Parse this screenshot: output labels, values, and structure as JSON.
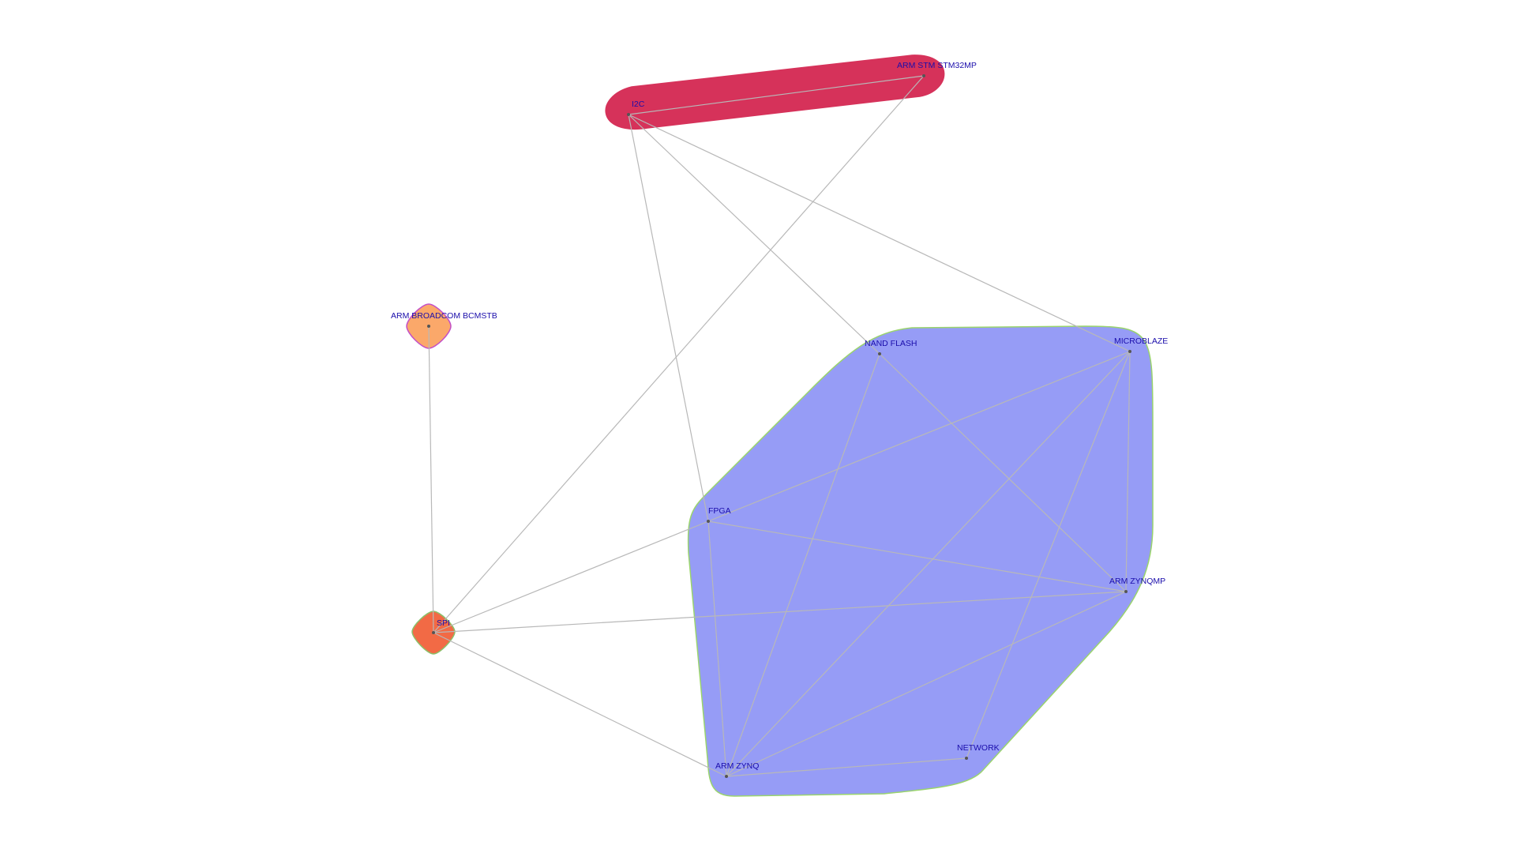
{
  "nodes": [
    {
      "id": "i2c",
      "label": "I2C"
    },
    {
      "id": "stm32mp",
      "label": "ARM STM STM32MP"
    },
    {
      "id": "bcmstb",
      "label": "ARM BROADCOM BCMSTB"
    },
    {
      "id": "spi",
      "label": "SPI"
    },
    {
      "id": "nand",
      "label": "NAND FLASH"
    },
    {
      "id": "microblaze",
      "label": "MICROBLAZE"
    },
    {
      "id": "fpga",
      "label": "FPGA"
    },
    {
      "id": "zynqmp",
      "label": "ARM ZYNQMP"
    },
    {
      "id": "network",
      "label": "NETWORK"
    },
    {
      "id": "zynq",
      "label": "ARM ZYNQ"
    }
  ],
  "edges": [
    [
      "i2c",
      "stm32mp"
    ],
    [
      "i2c",
      "nand"
    ],
    [
      "i2c",
      "microblaze"
    ],
    [
      "i2c",
      "fpga"
    ],
    [
      "stm32mp",
      "spi"
    ],
    [
      "bcmstb",
      "spi"
    ],
    [
      "spi",
      "fpga"
    ],
    [
      "spi",
      "zynqmp"
    ],
    [
      "spi",
      "zynq"
    ],
    [
      "nand",
      "zynqmp"
    ],
    [
      "nand",
      "zynq"
    ],
    [
      "microblaze",
      "fpga"
    ],
    [
      "microblaze",
      "zynqmp"
    ],
    [
      "microblaze",
      "zynq"
    ],
    [
      "microblaze",
      "network"
    ],
    [
      "fpga",
      "zynqmp"
    ],
    [
      "fpga",
      "zynq"
    ],
    [
      "zynqmp",
      "zynq"
    ],
    [
      "zynq",
      "network"
    ]
  ],
  "groups": [
    {
      "id": "group-red",
      "members": [
        "i2c",
        "stm32mp"
      ],
      "fill": "#d6325a",
      "stroke": "#d6325a"
    },
    {
      "id": "group-broadcom",
      "members": [
        "bcmstb"
      ],
      "fill": "#fba86a",
      "stroke": "#c34fc8"
    },
    {
      "id": "group-spi",
      "members": [
        "spi"
      ],
      "fill": "#f26a45",
      "stroke": "#8bc06a"
    },
    {
      "id": "group-blue",
      "members": [
        "nand",
        "microblaze",
        "fpga",
        "zynqmp",
        "network",
        "zynq"
      ],
      "fill": "#969cf6",
      "stroke": "#9ad46d"
    }
  ]
}
